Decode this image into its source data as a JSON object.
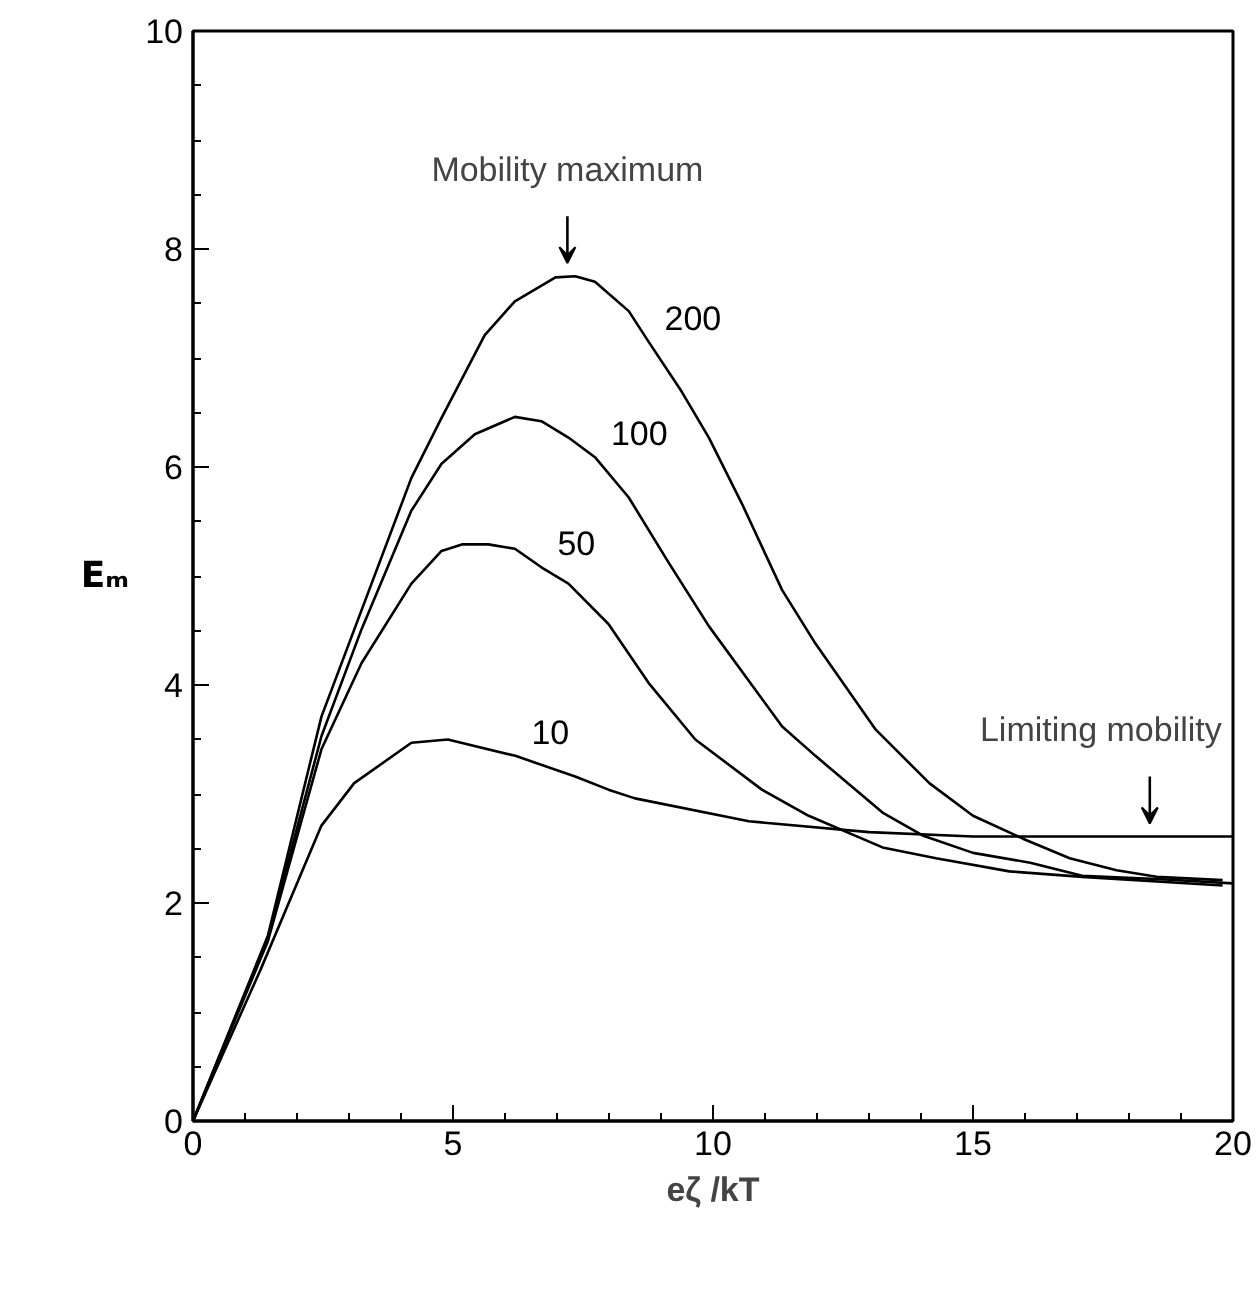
{
  "chart_data": {
    "type": "line",
    "xlabel": "eζ /kT",
    "ylabel": "Eₘ",
    "xlim": [
      0,
      20
    ],
    "ylim": [
      0,
      10
    ],
    "xticks": [
      0,
      5,
      10,
      15,
      20
    ],
    "yticks": [
      0,
      2,
      4,
      6,
      8,
      10
    ],
    "grid": false,
    "line_style": "solid",
    "marker": "none",
    "series": [
      {
        "name": "200",
        "color": "#000000",
        "x": [
          0,
          1.44,
          2.47,
          4.2,
          4.78,
          5.61,
          6.19,
          6.97,
          7.35,
          7.73,
          8.38,
          8.76,
          9.4,
          9.92,
          10.56,
          11.33,
          11.97,
          13.13,
          14.16,
          15.0,
          15.96,
          16.86,
          17.76,
          18.53,
          19.8
        ],
        "values": [
          0,
          1.7,
          3.71,
          5.9,
          6.45,
          7.21,
          7.52,
          7.74,
          7.75,
          7.7,
          7.43,
          7.15,
          6.69,
          6.27,
          5.66,
          4.87,
          4.38,
          3.59,
          3.1,
          2.8,
          2.59,
          2.41,
          2.3,
          2.24,
          2.21
        ]
      },
      {
        "name": "100",
        "color": "#000000",
        "x": [
          0,
          1.44,
          2.47,
          3.24,
          4.2,
          4.78,
          5.42,
          6.19,
          6.7,
          7.22,
          7.73,
          8.38,
          9.15,
          9.92,
          11.33,
          11.97,
          13.26,
          14.03,
          15.0,
          16.1,
          17.1,
          18.53,
          20
        ],
        "values": [
          0,
          1.68,
          3.53,
          4.51,
          5.6,
          6.03,
          6.3,
          6.46,
          6.42,
          6.27,
          6.09,
          5.72,
          5.12,
          4.54,
          3.62,
          3.35,
          2.83,
          2.62,
          2.46,
          2.37,
          2.25,
          2.22,
          2.18
        ]
      },
      {
        "name": "50",
        "color": "#000000",
        "x": [
          0,
          1.44,
          2.47,
          3.24,
          4.2,
          4.78,
          5.17,
          5.68,
          6.19,
          6.7,
          7.22,
          7.99,
          8.76,
          9.66,
          10.94,
          11.84,
          13.26,
          14.29,
          15.7,
          17.1,
          19.8
        ],
        "values": [
          0,
          1.65,
          3.41,
          4.2,
          4.93,
          5.23,
          5.29,
          5.29,
          5.25,
          5.08,
          4.93,
          4.56,
          4.02,
          3.5,
          3.04,
          2.8,
          2.51,
          2.41,
          2.29,
          2.24,
          2.16
        ]
      },
      {
        "name": "10",
        "color": "#000000",
        "x": [
          0,
          1.31,
          2.47,
          3.1,
          4.2,
          4.9,
          6.2,
          7.35,
          7.99,
          8.5,
          10.69,
          13.0,
          15.0,
          20
        ],
        "values": [
          0,
          1.4,
          2.71,
          3.1,
          3.47,
          3.5,
          3.35,
          3.16,
          3.04,
          2.96,
          2.75,
          2.65,
          2.61,
          2.61
        ]
      }
    ],
    "annotations": [
      {
        "text": "Mobility maximum",
        "x": 7.2,
        "y": 7.75
      },
      {
        "text": "Limiting mobility",
        "x": 18.4,
        "y": 2.61
      }
    ]
  }
}
